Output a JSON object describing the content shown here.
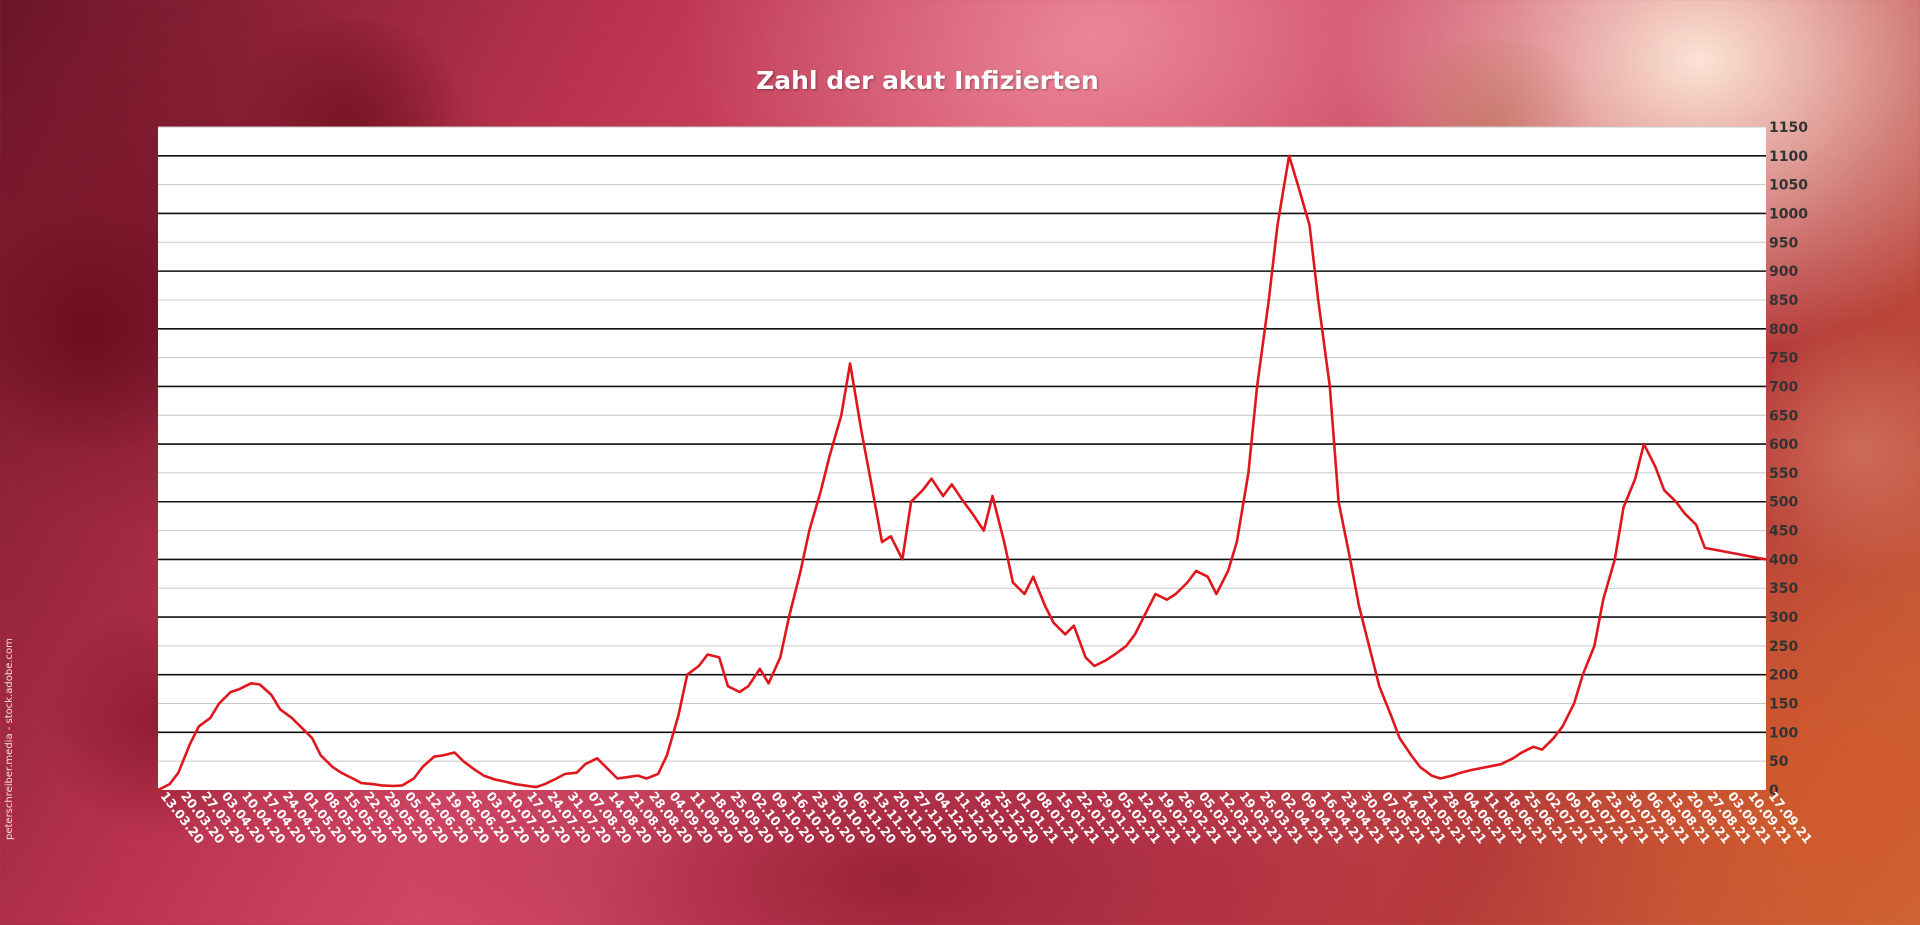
{
  "chart_data": {
    "type": "line",
    "title": "Zahl der akut Infizierten",
    "xlabel": "",
    "ylabel": "",
    "ylim": [
      0,
      1150
    ],
    "y_ticks": [
      0,
      50,
      100,
      150,
      200,
      250,
      300,
      350,
      400,
      450,
      500,
      550,
      600,
      650,
      700,
      750,
      800,
      850,
      900,
      950,
      1000,
      1050,
      1100,
      1150
    ],
    "x_tick_labels": [
      "13.03.20",
      "20.03.20",
      "27.03.20",
      "03.04.20",
      "10.04.20",
      "17.04.20",
      "24.04.20",
      "01.05.20",
      "08.05.20",
      "15.05.20",
      "22.05.20",
      "29.05.20",
      "05.06.20",
      "12.06.20",
      "19.06.20",
      "26.06.20",
      "03.07.20",
      "10.07.20",
      "17.07.20",
      "24.07.20",
      "31.07.20",
      "07.08.20",
      "14.08.20",
      "21.08.20",
      "28.08.20",
      "04.09.20",
      "11.09.20",
      "18.09.20",
      "25.09.20",
      "02.10.20",
      "09.10.20",
      "16.10.20",
      "23.10.20",
      "30.10.20",
      "06.11.20",
      "13.11.20",
      "20.11.20",
      "27.11.20",
      "04.12.20",
      "11.12.20",
      "18.12.20",
      "25.12.20",
      "01.01.21",
      "08.01.21",
      "15.01.21",
      "22.01.21",
      "29.01.21",
      "05.02.21",
      "12.02.21",
      "19.02.21",
      "26.02.21",
      "05.03.21",
      "12.03.21",
      "19.03.21",
      "26.03.21",
      "02.04.21",
      "09.04.21",
      "16.04.21",
      "23.04.21",
      "30.04.21",
      "07.05.21",
      "14.05.21",
      "21.05.21",
      "28.05.21",
      "04.06.21",
      "11.06.21",
      "18.06.21",
      "25.06.21",
      "02.07.21",
      "09.07.21",
      "16.07.21",
      "23.07.21",
      "30.07.21",
      "06.08.21",
      "13.08.21",
      "20.08.21",
      "27.08.21",
      "03.09.21",
      "10.09.21",
      "17.09.21"
    ],
    "grid": "major lines every 100, minor lines every 50",
    "legend": "none",
    "series": [
      {
        "color": "#e0161d",
        "points": [
          [
            "13.03.20",
            0
          ],
          [
            "17.03.20",
            10
          ],
          [
            "20.03.20",
            30
          ],
          [
            "24.03.20",
            80
          ],
          [
            "27.03.20",
            110
          ],
          [
            "31.03.20",
            125
          ],
          [
            "03.04.20",
            150
          ],
          [
            "07.04.20",
            170
          ],
          [
            "10.04.20",
            175
          ],
          [
            "14.04.20",
            185
          ],
          [
            "17.04.20",
            183
          ],
          [
            "21.04.20",
            165
          ],
          [
            "24.04.20",
            140
          ],
          [
            "28.04.20",
            125
          ],
          [
            "01.05.20",
            110
          ],
          [
            "05.05.20",
            90
          ],
          [
            "08.05.20",
            60
          ],
          [
            "12.05.20",
            40
          ],
          [
            "15.05.20",
            30
          ],
          [
            "19.05.20",
            20
          ],
          [
            "22.05.20",
            12
          ],
          [
            "26.05.20",
            10
          ],
          [
            "29.05.20",
            8
          ],
          [
            "02.06.20",
            7
          ],
          [
            "05.06.20",
            8
          ],
          [
            "09.06.20",
            20
          ],
          [
            "12.06.20",
            40
          ],
          [
            "16.06.20",
            58
          ],
          [
            "19.06.20",
            60
          ],
          [
            "23.06.20",
            65
          ],
          [
            "26.06.20",
            50
          ],
          [
            "30.06.20",
            35
          ],
          [
            "03.07.20",
            25
          ],
          [
            "07.07.20",
            18
          ],
          [
            "10.07.20",
            15
          ],
          [
            "14.07.20",
            10
          ],
          [
            "17.07.20",
            8
          ],
          [
            "21.07.20",
            5
          ],
          [
            "24.07.20",
            10
          ],
          [
            "28.07.20",
            20
          ],
          [
            "31.07.20",
            28
          ],
          [
            "04.08.20",
            30
          ],
          [
            "07.08.20",
            45
          ],
          [
            "11.08.20",
            55
          ],
          [
            "14.08.20",
            40
          ],
          [
            "18.08.20",
            20
          ],
          [
            "21.08.20",
            22
          ],
          [
            "25.08.20",
            25
          ],
          [
            "28.08.20",
            20
          ],
          [
            "01.09.20",
            28
          ],
          [
            "04.09.20",
            60
          ],
          [
            "08.09.20",
            130
          ],
          [
            "11.09.20",
            200
          ],
          [
            "15.09.20",
            215
          ],
          [
            "18.09.20",
            235
          ],
          [
            "22.09.20",
            230
          ],
          [
            "25.09.20",
            180
          ],
          [
            "29.09.20",
            170
          ],
          [
            "02.10.20",
            180
          ],
          [
            "06.10.20",
            210
          ],
          [
            "09.10.20",
            185
          ],
          [
            "13.10.20",
            230
          ],
          [
            "16.10.20",
            300
          ],
          [
            "20.10.20",
            380
          ],
          [
            "23.10.20",
            450
          ],
          [
            "27.10.20",
            520
          ],
          [
            "30.10.20",
            580
          ],
          [
            "03.11.20",
            650
          ],
          [
            "06.11.20",
            740
          ],
          [
            "10.11.20",
            620
          ],
          [
            "13.11.20",
            540
          ],
          [
            "17.11.20",
            430
          ],
          [
            "20.11.20",
            440
          ],
          [
            "24.11.20",
            400
          ],
          [
            "27.11.20",
            500
          ],
          [
            "01.12.20",
            520
          ],
          [
            "04.12.20",
            540
          ],
          [
            "08.12.20",
            510
          ],
          [
            "11.12.20",
            530
          ],
          [
            "15.12.20",
            500
          ],
          [
            "18.12.20",
            480
          ],
          [
            "22.12.20",
            450
          ],
          [
            "25.12.20",
            510
          ],
          [
            "29.12.20",
            430
          ],
          [
            "01.01.21",
            360
          ],
          [
            "05.01.21",
            340
          ],
          [
            "08.01.21",
            370
          ],
          [
            "12.01.21",
            320
          ],
          [
            "15.01.21",
            290
          ],
          [
            "19.01.21",
            270
          ],
          [
            "22.01.21",
            285
          ],
          [
            "26.01.21",
            230
          ],
          [
            "29.01.21",
            215
          ],
          [
            "02.02.21",
            225
          ],
          [
            "05.02.21",
            235
          ],
          [
            "09.02.21",
            250
          ],
          [
            "12.02.21",
            270
          ],
          [
            "16.02.21",
            310
          ],
          [
            "19.02.21",
            340
          ],
          [
            "23.02.21",
            330
          ],
          [
            "26.02.21",
            340
          ],
          [
            "02.03.21",
            360
          ],
          [
            "05.03.21",
            380
          ],
          [
            "09.03.21",
            370
          ],
          [
            "12.03.21",
            340
          ],
          [
            "16.03.21",
            380
          ],
          [
            "19.03.21",
            430
          ],
          [
            "23.03.21",
            550
          ],
          [
            "26.03.21",
            700
          ],
          [
            "30.03.21",
            850
          ],
          [
            "02.04.21",
            980
          ],
          [
            "06.04.21",
            1100
          ],
          [
            "09.04.21",
            1050
          ],
          [
            "13.04.21",
            980
          ],
          [
            "16.04.21",
            850
          ],
          [
            "20.04.21",
            700
          ],
          [
            "23.04.21",
            500
          ],
          [
            "27.04.21",
            400
          ],
          [
            "30.04.21",
            320
          ],
          [
            "04.05.21",
            240
          ],
          [
            "07.05.21",
            180
          ],
          [
            "11.05.21",
            130
          ],
          [
            "14.05.21",
            90
          ],
          [
            "18.05.21",
            60
          ],
          [
            "21.05.21",
            40
          ],
          [
            "25.05.21",
            25
          ],
          [
            "28.05.21",
            20
          ],
          [
            "01.06.21",
            25
          ],
          [
            "04.06.21",
            30
          ],
          [
            "08.06.21",
            35
          ],
          [
            "11.06.21",
            38
          ],
          [
            "15.06.21",
            42
          ],
          [
            "18.06.21",
            45
          ],
          [
            "22.06.21",
            55
          ],
          [
            "25.06.21",
            65
          ],
          [
            "29.06.21",
            75
          ],
          [
            "02.07.21",
            70
          ],
          [
            "06.07.21",
            90
          ],
          [
            "09.07.21",
            110
          ],
          [
            "13.07.21",
            150
          ],
          [
            "16.07.21",
            200
          ],
          [
            "20.07.21",
            250
          ],
          [
            "23.07.21",
            330
          ],
          [
            "27.07.21",
            400
          ],
          [
            "30.07.21",
            490
          ],
          [
            "03.08.21",
            540
          ],
          [
            "06.08.21",
            600
          ],
          [
            "10.08.21",
            560
          ],
          [
            "13.08.21",
            520
          ],
          [
            "17.08.21",
            500
          ],
          [
            "20.08.21",
            480
          ],
          [
            "24.08.21",
            460
          ],
          [
            "27.08.21",
            420
          ],
          [
            "17.09.21",
            400
          ]
        ]
      }
    ]
  },
  "credit": "peterschreiber.media - stock.adobe.com"
}
